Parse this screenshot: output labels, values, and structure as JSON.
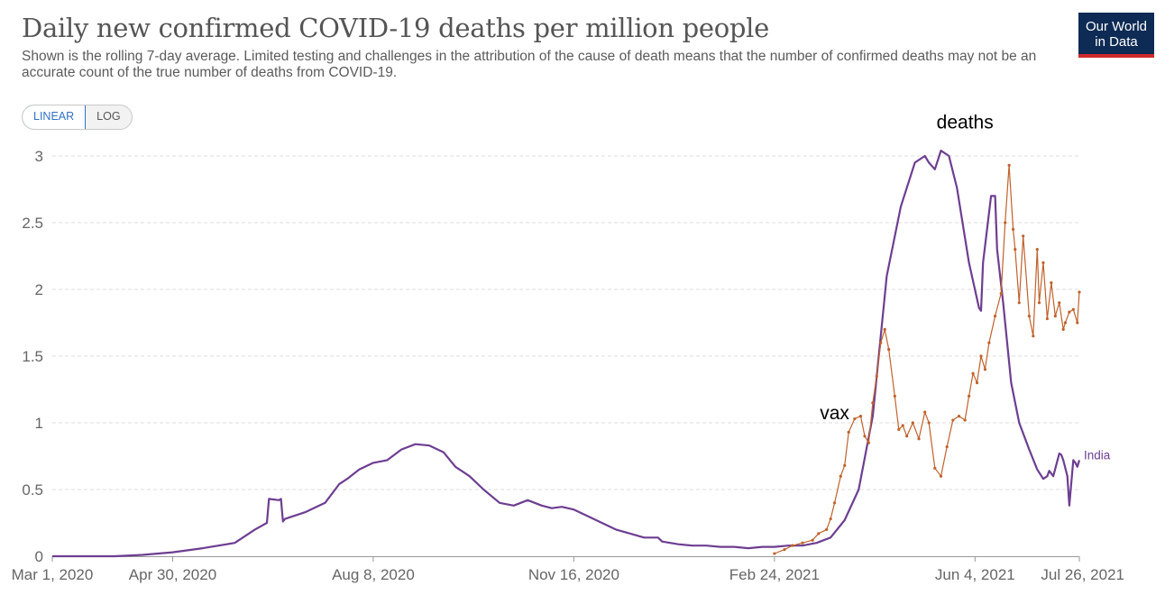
{
  "header": {
    "title": "Daily new confirmed COVID-19 deaths per million people",
    "subtitle": "Shown is the rolling 7-day average. Limited testing and challenges in the attribution of the cause of death means that the number of confirmed deaths may not be an accurate count of the true number of deaths from COVID-19."
  },
  "logo": {
    "line1": "Our World",
    "line2": "in Data",
    "bg_color": "#0d2b54",
    "accent_color": "#cf2a2a"
  },
  "scale_toggle": {
    "options": [
      "LINEAR",
      "LOG"
    ],
    "selected": "LINEAR"
  },
  "chart_data": {
    "type": "line",
    "title": "Daily new confirmed COVID-19 deaths per million people",
    "xlabel": "",
    "ylabel": "",
    "x_type": "date",
    "xlim": [
      "2020-03-01",
      "2021-07-26"
    ],
    "ylim": [
      0,
      3
    ],
    "y_ticks": [
      0,
      0.5,
      1,
      1.5,
      2,
      2.5,
      3
    ],
    "y_tick_labels": [
      "0",
      "0.5",
      "1",
      "1.5",
      "2",
      "2.5",
      "3"
    ],
    "x_ticks": [
      "2020-03-01",
      "2020-04-30",
      "2020-08-08",
      "2020-11-16",
      "2021-02-24",
      "2021-06-04",
      "2021-07-26"
    ],
    "x_tick_labels": [
      "Mar 1, 2020",
      "Apr 30, 2020",
      "Aug 8, 2020",
      "Nov 16, 2020",
      "Feb 24, 2021",
      "Jun 4, 2021",
      "Jul 26, 2021"
    ],
    "grid": {
      "horizontal": true,
      "vertical": false
    },
    "annotations": [
      {
        "text": "deaths",
        "x": "2021-05-30",
        "y": 3.18
      },
      {
        "text": "vax",
        "x": "2021-03-26",
        "y": 1.0
      }
    ],
    "series": [
      {
        "name": "India",
        "color": "#6d3e91",
        "x": [
          "2020-03-01",
          "2020-04-01",
          "2020-04-15",
          "2020-04-30",
          "2020-05-15",
          "2020-05-31",
          "2020-06-10",
          "2020-06-16",
          "2020-06-17",
          "2020-06-22",
          "2020-06-23",
          "2020-06-24",
          "2020-06-25",
          "2020-07-05",
          "2020-07-15",
          "2020-07-22",
          "2020-07-26",
          "2020-08-01",
          "2020-08-08",
          "2020-08-15",
          "2020-08-22",
          "2020-08-29",
          "2020-09-05",
          "2020-09-12",
          "2020-09-18",
          "2020-09-25",
          "2020-10-02",
          "2020-10-10",
          "2020-10-17",
          "2020-10-24",
          "2020-10-31",
          "2020-11-05",
          "2020-11-10",
          "2020-11-16",
          "2020-11-23",
          "2020-11-30",
          "2020-12-07",
          "2020-12-14",
          "2020-12-21",
          "2020-12-28",
          "2020-12-30",
          "2021-01-07",
          "2021-01-14",
          "2021-01-21",
          "2021-01-28",
          "2021-02-04",
          "2021-02-11",
          "2021-02-18",
          "2021-02-24",
          "2021-03-03",
          "2021-03-10",
          "2021-03-17",
          "2021-03-24",
          "2021-03-31",
          "2021-04-07",
          "2021-04-14",
          "2021-04-21",
          "2021-04-28",
          "2021-05-05",
          "2021-05-10",
          "2021-05-12",
          "2021-05-15",
          "2021-05-18",
          "2021-05-22",
          "2021-05-26",
          "2021-06-01",
          "2021-06-06",
          "2021-06-07",
          "2021-06-08",
          "2021-06-12",
          "2021-06-14",
          "2021-06-15",
          "2021-06-18",
          "2021-06-22",
          "2021-06-26",
          "2021-07-01",
          "2021-07-05",
          "2021-07-08",
          "2021-07-10",
          "2021-07-11",
          "2021-07-13",
          "2021-07-16",
          "2021-07-17",
          "2021-07-18",
          "2021-07-20",
          "2021-07-21",
          "2021-07-23",
          "2021-07-24",
          "2021-07-25",
          "2021-07-26"
        ],
        "y": [
          0,
          0,
          0.01,
          0.03,
          0.06,
          0.1,
          0.2,
          0.25,
          0.43,
          0.42,
          0.43,
          0.26,
          0.28,
          0.33,
          0.4,
          0.54,
          0.58,
          0.65,
          0.7,
          0.72,
          0.8,
          0.84,
          0.83,
          0.78,
          0.67,
          0.6,
          0.5,
          0.4,
          0.38,
          0.42,
          0.38,
          0.36,
          0.37,
          0.35,
          0.3,
          0.25,
          0.2,
          0.17,
          0.14,
          0.14,
          0.11,
          0.09,
          0.08,
          0.08,
          0.07,
          0.07,
          0.06,
          0.07,
          0.07,
          0.08,
          0.08,
          0.1,
          0.14,
          0.27,
          0.5,
          1.05,
          2.1,
          2.62,
          2.95,
          3.0,
          2.95,
          2.9,
          3.04,
          3.0,
          2.76,
          2.2,
          1.86,
          1.84,
          2.2,
          2.7,
          2.7,
          2.3,
          1.9,
          1.3,
          1.0,
          0.8,
          0.65,
          0.58,
          0.6,
          0.64,
          0.6,
          0.77,
          0.76,
          0.72,
          0.6,
          0.38,
          0.72,
          0.7,
          0.67,
          0.72
        ]
      },
      {
        "name": "",
        "color": "#c0622c",
        "x": [
          "2021-02-24",
          "2021-03-01",
          "2021-03-05",
          "2021-03-10",
          "2021-03-15",
          "2021-03-18",
          "2021-03-22",
          "2021-03-24",
          "2021-03-26",
          "2021-03-29",
          "2021-03-31",
          "2021-04-02",
          "2021-04-05",
          "2021-04-08",
          "2021-04-10",
          "2021-04-12",
          "2021-04-14",
          "2021-04-16",
          "2021-04-18",
          "2021-04-20",
          "2021-04-22",
          "2021-04-25",
          "2021-04-27",
          "2021-04-29",
          "2021-05-01",
          "2021-05-04",
          "2021-05-07",
          "2021-05-10",
          "2021-05-12",
          "2021-05-15",
          "2021-05-18",
          "2021-05-21",
          "2021-05-24",
          "2021-05-27",
          "2021-05-30",
          "2021-06-01",
          "2021-06-03",
          "2021-06-05",
          "2021-06-07",
          "2021-06-09",
          "2021-06-11",
          "2021-06-14",
          "2021-06-17",
          "2021-06-19",
          "2021-06-21",
          "2021-06-23",
          "2021-06-24",
          "2021-06-26",
          "2021-06-28",
          "2021-07-01",
          "2021-07-03",
          "2021-07-05",
          "2021-07-06",
          "2021-07-08",
          "2021-07-10",
          "2021-07-12",
          "2021-07-14",
          "2021-07-16",
          "2021-07-18",
          "2021-07-19",
          "2021-07-21",
          "2021-07-23",
          "2021-07-25",
          "2021-07-26"
        ],
        "y": [
          0.02,
          0.05,
          0.08,
          0.1,
          0.12,
          0.17,
          0.2,
          0.28,
          0.4,
          0.6,
          0.68,
          0.93,
          1.03,
          1.05,
          0.9,
          0.85,
          1.15,
          1.35,
          1.6,
          1.7,
          1.55,
          1.2,
          0.95,
          0.98,
          0.9,
          1.0,
          0.88,
          1.08,
          1.0,
          0.66,
          0.6,
          0.82,
          1.02,
          1.05,
          1.02,
          1.2,
          1.37,
          1.3,
          1.5,
          1.4,
          1.6,
          1.8,
          1.97,
          2.5,
          2.93,
          2.45,
          2.3,
          1.9,
          2.4,
          1.8,
          1.65,
          2.3,
          1.9,
          2.2,
          1.78,
          2.05,
          1.8,
          1.9,
          1.7,
          1.75,
          1.83,
          1.85,
          1.75,
          1.98
        ]
      }
    ],
    "end_labels": [
      "India"
    ]
  }
}
